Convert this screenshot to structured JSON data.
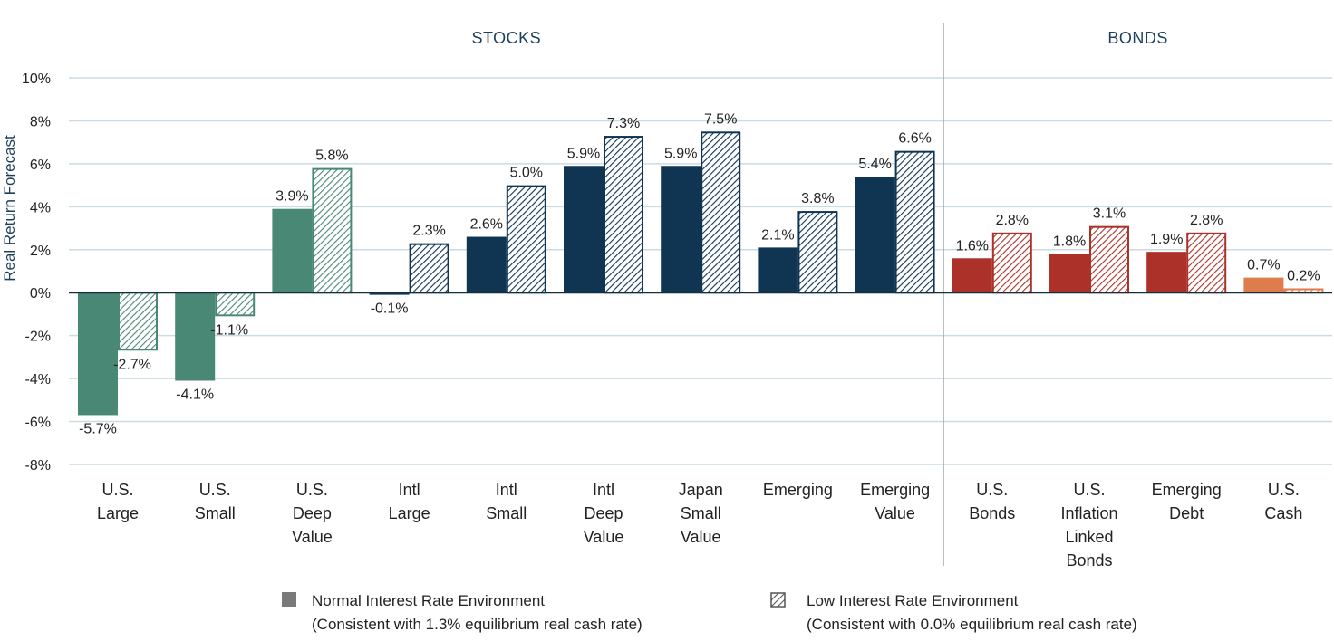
{
  "chart_data": {
    "type": "bar",
    "ylabel": "Real Return Forecast",
    "ylim": [
      -8,
      10
    ],
    "yticks": [
      10,
      8,
      6,
      4,
      2,
      0,
      -2,
      -4,
      -6,
      -8
    ],
    "ytick_labels": [
      "10%",
      "8%",
      "6%",
      "4%",
      "2%",
      "0%",
      "-2%",
      "-4%",
      "-6%",
      "-8%"
    ],
    "grid": true,
    "sections": [
      {
        "label": "STOCKS",
        "start": 0,
        "end": 8
      },
      {
        "label": "BONDS",
        "start": 9,
        "end": 12
      }
    ],
    "categories": [
      [
        "U.S.",
        "Large"
      ],
      [
        "U.S.",
        "Small"
      ],
      [
        "U.S.",
        "Deep",
        "Value"
      ],
      [
        "Intl",
        "Large"
      ],
      [
        "Intl",
        "Small"
      ],
      [
        "Intl",
        "Deep",
        "Value"
      ],
      [
        "Japan",
        "Small",
        "Value"
      ],
      [
        "Emerging"
      ],
      [
        "Emerging",
        "Value"
      ],
      [
        "U.S.",
        "Bonds"
      ],
      [
        "U.S.",
        "Inflation",
        "Linked",
        "Bonds"
      ],
      [
        "Emerging",
        "Debt"
      ],
      [
        "U.S.",
        "Cash"
      ]
    ],
    "colors": [
      "#4a8876",
      "#4a8876",
      "#4a8876",
      "#0f3553",
      "#0f3553",
      "#0f3553",
      "#0f3553",
      "#0f3553",
      "#0f3553",
      "#ab3129",
      "#ab3129",
      "#ab3129",
      "#de7c4c"
    ],
    "series": [
      {
        "name": "Normal Interest Rate Environment",
        "note": "(Consistent with 1.3% equilibrium real cash rate)",
        "pattern": "solid",
        "values": [
          -5.7,
          -4.1,
          3.9,
          -0.1,
          2.6,
          5.9,
          5.9,
          2.1,
          5.4,
          1.6,
          1.8,
          1.9,
          0.7
        ],
        "labels": [
          "-5.7%",
          "-4.1%",
          "3.9%",
          "-0.1%",
          "2.6%",
          "5.9%",
          "5.9%",
          "2.1%",
          "5.4%",
          "1.6%",
          "1.8%",
          "1.9%",
          "0.7%"
        ]
      },
      {
        "name": "Low Interest Rate Environment",
        "note": "(Consistent with 0.0% equilibrium real cash rate)",
        "pattern": "hatched",
        "values": [
          -2.7,
          -1.1,
          5.8,
          2.3,
          5.0,
          7.3,
          7.5,
          3.8,
          6.6,
          2.8,
          3.1,
          2.8,
          0.2
        ],
        "labels": [
          "-2.7%",
          "-1.1%",
          "5.8%",
          "2.3%",
          "5.0%",
          "7.3%",
          "7.5%",
          "3.8%",
          "6.6%",
          "2.8%",
          "3.1%",
          "2.8%",
          "0.2%"
        ]
      }
    ],
    "legend_placement": "bottom"
  }
}
